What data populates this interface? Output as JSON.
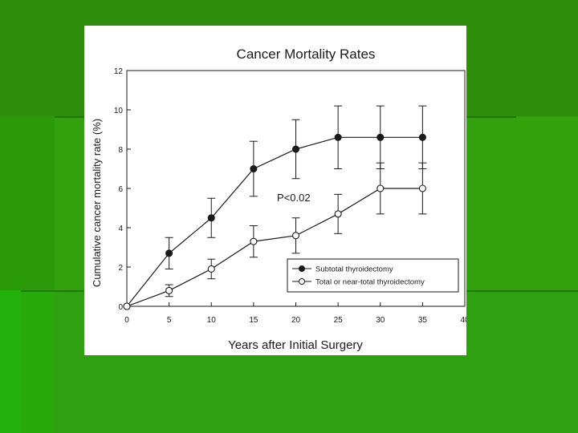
{
  "chart_data": {
    "type": "line",
    "title": "Cancer Mortality Rates",
    "xlabel": "Years after Initial Surgery",
    "ylabel": "Cumulative cancer mortality rate (%)",
    "xlim": [
      0,
      40
    ],
    "ylim": [
      0,
      12
    ],
    "xticks": [
      0,
      5,
      10,
      15,
      20,
      25,
      30,
      35,
      40
    ],
    "yticks": [
      0,
      2,
      4,
      6,
      8,
      10,
      12
    ],
    "grid": false,
    "legend": "bottom-right",
    "annotation": "P<0.02",
    "series": [
      {
        "name": "Subtotal thyroidectomy",
        "marker": "filled-circle",
        "x": [
          0,
          5,
          10,
          15,
          20,
          25,
          30,
          35
        ],
        "y": [
          0,
          2.7,
          4.5,
          7.0,
          8.0,
          8.6,
          8.6,
          8.6
        ],
        "err": [
          0,
          0.8,
          1.0,
          1.4,
          1.5,
          1.6,
          1.6,
          1.6
        ]
      },
      {
        "name": "Total or near-total thyroidectomy",
        "marker": "open-circle",
        "x": [
          0,
          5,
          10,
          15,
          20,
          25,
          30,
          35
        ],
        "y": [
          0,
          0.8,
          1.9,
          3.3,
          3.6,
          4.7,
          6.0,
          6.0
        ],
        "err": [
          0,
          0.3,
          0.5,
          0.8,
          0.9,
          1.0,
          1.3,
          1.3
        ]
      }
    ]
  },
  "colors": {
    "ink": "#1a1a1a",
    "card": "#ffffff",
    "background": "#2b9a08"
  }
}
